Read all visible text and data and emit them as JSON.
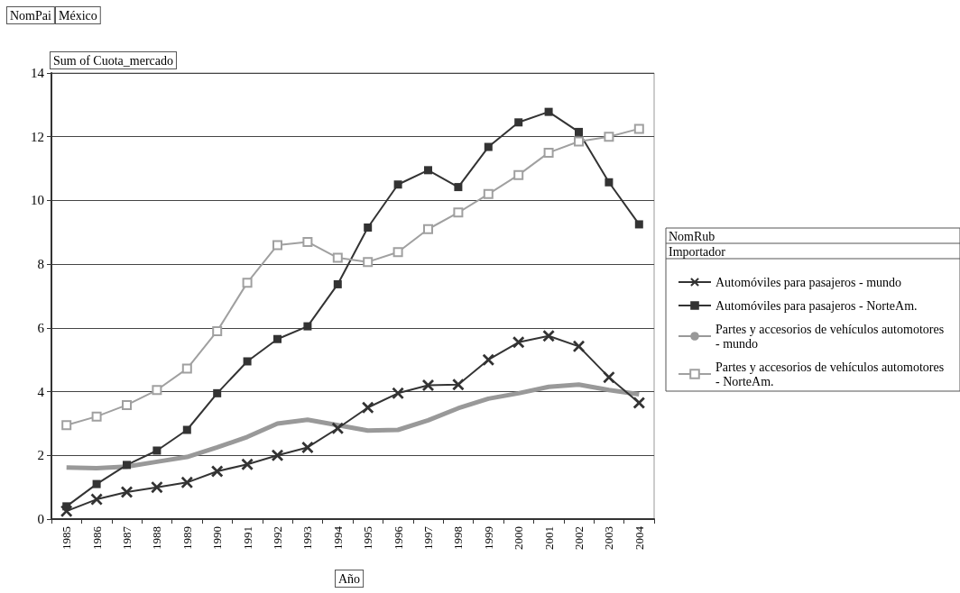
{
  "chart_data": {
    "type": "line",
    "ylabel": "Sum of Cuota_mercado",
    "xlabel": "Año",
    "legend_title": "NomRub",
    "annotations": [
      "NomPai",
      "México",
      "Importador"
    ],
    "categories": [
      "1985",
      "1986",
      "1987",
      "1988",
      "1989",
      "1990",
      "1991",
      "1992",
      "1993",
      "1994",
      "1995",
      "1996",
      "1997",
      "1998",
      "1999",
      "2000",
      "2001",
      "2002",
      "2003",
      "2004"
    ],
    "ylim": [
      0,
      14
    ],
    "yticks": [
      0,
      2,
      4,
      6,
      8,
      10,
      12,
      14
    ],
    "grid": "y",
    "legend": "right",
    "series": [
      {
        "name": "Automóviles para pasajeros - mundo",
        "color": "#333333",
        "marker": "cross",
        "values": [
          0.25,
          0.62,
          0.85,
          1.0,
          1.15,
          1.5,
          1.72,
          2.0,
          2.25,
          2.85,
          3.5,
          3.95,
          4.2,
          4.22,
          5.0,
          5.55,
          5.75,
          5.42,
          4.45,
          3.65
        ]
      },
      {
        "name": "Automóviles para pasajeros - NorteAm.",
        "color": "#333333",
        "marker": "square",
        "values": [
          0.4,
          1.1,
          1.7,
          2.15,
          2.8,
          3.95,
          4.95,
          5.65,
          6.05,
          7.37,
          9.15,
          10.5,
          10.95,
          10.42,
          11.68,
          12.45,
          12.78,
          12.15,
          10.57,
          9.25
        ]
      },
      {
        "name": "Partes y accesorios de vehículos automotores - mundo",
        "color": "#999999",
        "marker": "none",
        "values": [
          1.62,
          1.6,
          1.65,
          1.8,
          1.95,
          2.25,
          2.58,
          3.0,
          3.12,
          2.95,
          2.78,
          2.8,
          3.1,
          3.48,
          3.78,
          3.95,
          4.15,
          4.22,
          4.05,
          3.92
        ]
      },
      {
        "name": "Partes y accesorios de vehículos automotores - NorteAm.",
        "color": "#a0a0a0",
        "marker": "square",
        "values": [
          2.95,
          3.22,
          3.58,
          4.05,
          4.72,
          5.9,
          7.42,
          8.6,
          8.7,
          8.2,
          8.07,
          8.38,
          9.1,
          9.62,
          10.2,
          10.8,
          11.5,
          11.85,
          12.0,
          12.25
        ]
      }
    ]
  }
}
